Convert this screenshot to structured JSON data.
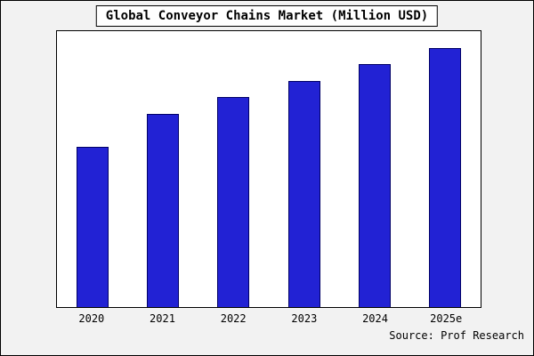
{
  "chart_data": {
    "type": "bar",
    "title": "Global Conveyor Chains Market (Million USD)",
    "categories": [
      "2020",
      "2021",
      "2022",
      "2023",
      "2024",
      "2025e"
    ],
    "values": [
      58,
      70,
      76,
      82,
      88,
      94
    ],
    "xlabel": "",
    "ylabel": "",
    "ylim": [
      0,
      100
    ],
    "grid": false,
    "legend": false,
    "note": "no y-axis tick labels shown; values are relative estimates of bar heights",
    "bar_color": "#2222d4",
    "bar_edge_color": "#000066",
    "outer_background": "#f2f2f2",
    "plot_background": "#ffffff"
  },
  "source": "Source: Prof Research"
}
